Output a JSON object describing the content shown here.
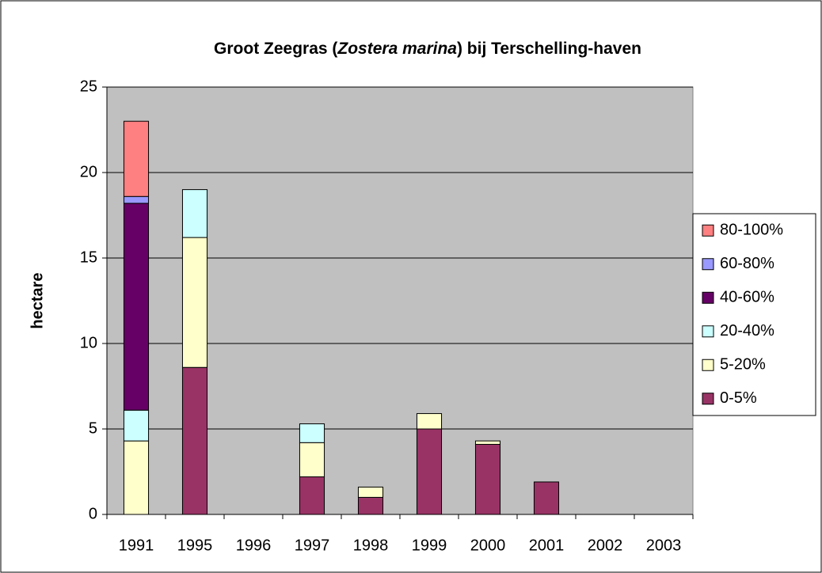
{
  "chart_data": {
    "type": "stacked_bar",
    "title": [
      "Groot Zeegras (",
      "Zostera marina",
      ") bij Terschelling-haven"
    ],
    "y_label": "hectare",
    "categories": [
      "1991",
      "1995",
      "1996",
      "1997",
      "1998",
      "1999",
      "2000",
      "2001",
      "2002",
      "2003"
    ],
    "series": [
      {
        "name": "0-5%",
        "color": "#993366",
        "values": [
          0,
          8.6,
          0,
          2.2,
          1.0,
          5.0,
          4.1,
          1.9,
          0,
          0
        ]
      },
      {
        "name": "5-20%",
        "color": "#FFFFCC",
        "values": [
          4.3,
          7.6,
          0,
          2.0,
          0.6,
          0.9,
          0.2,
          0,
          0,
          0
        ]
      },
      {
        "name": "20-40%",
        "color": "#CCFFFF",
        "values": [
          1.8,
          2.8,
          0,
          1.1,
          0,
          0,
          0,
          0,
          0,
          0
        ]
      },
      {
        "name": "40-60%",
        "color": "#660066",
        "values": [
          12.1,
          0,
          0,
          0,
          0,
          0,
          0,
          0,
          0,
          0
        ]
      },
      {
        "name": "60-80%",
        "color": "#9999FF",
        "values": [
          0.4,
          0,
          0,
          0,
          0,
          0,
          0,
          0,
          0,
          0
        ]
      },
      {
        "name": "80-100%",
        "color": "#FF8080",
        "values": [
          4.4,
          0,
          0,
          0,
          0,
          0,
          0,
          0,
          0,
          0
        ]
      }
    ],
    "ylim": [
      0,
      25
    ],
    "yticks": [
      0,
      5,
      10,
      15,
      20,
      25
    ],
    "grid": true,
    "plot_background": "#C0C0C0",
    "legend": "right"
  }
}
